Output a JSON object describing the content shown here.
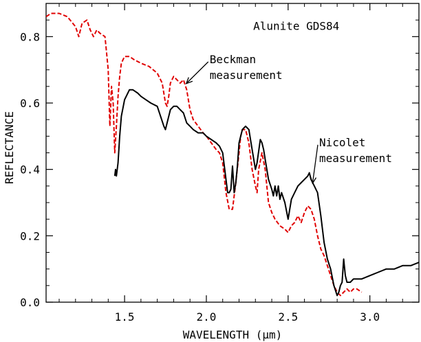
{
  "chart_data": {
    "type": "line",
    "title": "Alunite GDS84",
    "xlabel": "WAVELENGTH (µm)",
    "ylabel": "REFLECTANCE",
    "xlim": [
      1.02,
      3.3
    ],
    "ylim": [
      0.0,
      0.9
    ],
    "xticks": [
      1.5,
      2.0,
      2.5,
      3.0
    ],
    "xtick_labels": [
      "1.5",
      "2.0",
      "2.5",
      "3.0"
    ],
    "yticks": [
      0.0,
      0.2,
      0.4,
      0.6,
      0.8
    ],
    "ytick_labels": [
      "0.0",
      "0.2",
      "0.4",
      "0.6",
      "0.8"
    ],
    "grid": false,
    "legend": "none",
    "series": [
      {
        "name": "Beckman measurement",
        "color": "#e00000",
        "dash": "dashed",
        "x": [
          1.02,
          1.05,
          1.1,
          1.15,
          1.2,
          1.22,
          1.24,
          1.27,
          1.29,
          1.31,
          1.33,
          1.35,
          1.38,
          1.39,
          1.4,
          1.41,
          1.42,
          1.43,
          1.44,
          1.45,
          1.46,
          1.47,
          1.48,
          1.5,
          1.53,
          1.56,
          1.6,
          1.65,
          1.7,
          1.73,
          1.75,
          1.76,
          1.77,
          1.78,
          1.8,
          1.82,
          1.84,
          1.86,
          1.88,
          1.9,
          1.92,
          1.95,
          1.98,
          2.0,
          2.03,
          2.06,
          2.08,
          2.1,
          2.12,
          2.14,
          2.16,
          2.17,
          2.18,
          2.2,
          2.21,
          2.22,
          2.24,
          2.26,
          2.28,
          2.3,
          2.31,
          2.32,
          2.34,
          2.36,
          2.38,
          2.4,
          2.42,
          2.45,
          2.48,
          2.5,
          2.52,
          2.54,
          2.56,
          2.58,
          2.6,
          2.62,
          2.64,
          2.66,
          2.68,
          2.7,
          2.72,
          2.74,
          2.76,
          2.78,
          2.8,
          2.82,
          2.84,
          2.86,
          2.88,
          2.9,
          2.92,
          2.95
        ],
        "y": [
          0.86,
          0.87,
          0.87,
          0.86,
          0.83,
          0.8,
          0.84,
          0.85,
          0.82,
          0.8,
          0.82,
          0.81,
          0.8,
          0.75,
          0.7,
          0.53,
          0.65,
          0.6,
          0.45,
          0.53,
          0.62,
          0.68,
          0.72,
          0.74,
          0.74,
          0.73,
          0.72,
          0.71,
          0.69,
          0.66,
          0.6,
          0.59,
          0.62,
          0.66,
          0.68,
          0.67,
          0.66,
          0.67,
          0.64,
          0.58,
          0.55,
          0.53,
          0.51,
          0.5,
          0.48,
          0.46,
          0.45,
          0.42,
          0.33,
          0.28,
          0.28,
          0.32,
          0.36,
          0.45,
          0.5,
          0.52,
          0.52,
          0.48,
          0.4,
          0.35,
          0.33,
          0.4,
          0.45,
          0.4,
          0.3,
          0.27,
          0.25,
          0.23,
          0.22,
          0.21,
          0.23,
          0.24,
          0.26,
          0.24,
          0.27,
          0.29,
          0.28,
          0.25,
          0.2,
          0.16,
          0.14,
          0.11,
          0.08,
          0.05,
          0.03,
          0.02,
          0.03,
          0.04,
          0.03,
          0.04,
          0.04,
          0.03
        ]
      },
      {
        "name": "Nicolet measurement",
        "color": "#000000",
        "dash": "solid",
        "x": [
          1.44,
          1.445,
          1.45,
          1.455,
          1.46,
          1.47,
          1.48,
          1.5,
          1.53,
          1.55,
          1.58,
          1.6,
          1.63,
          1.66,
          1.7,
          1.72,
          1.74,
          1.75,
          1.76,
          1.78,
          1.8,
          1.82,
          1.84,
          1.86,
          1.88,
          1.9,
          1.92,
          1.95,
          1.98,
          2.0,
          2.03,
          2.06,
          2.08,
          2.1,
          2.12,
          2.13,
          2.14,
          2.15,
          2.16,
          2.17,
          2.18,
          2.19,
          2.2,
          2.22,
          2.24,
          2.26,
          2.28,
          2.3,
          2.31,
          2.33,
          2.34,
          2.35,
          2.36,
          2.38,
          2.4,
          2.41,
          2.42,
          2.43,
          2.44,
          2.45,
          2.46,
          2.48,
          2.5,
          2.52,
          2.54,
          2.56,
          2.58,
          2.6,
          2.62,
          2.63,
          2.64,
          2.66,
          2.68,
          2.7,
          2.72,
          2.74,
          2.76,
          2.78,
          2.8,
          2.81,
          2.82,
          2.83,
          2.84,
          2.85,
          2.86,
          2.88,
          2.9,
          2.95,
          3.0,
          3.05,
          3.1,
          3.15,
          3.2,
          3.25,
          3.3
        ],
        "y": [
          0.38,
          0.4,
          0.38,
          0.4,
          0.42,
          0.5,
          0.56,
          0.61,
          0.64,
          0.64,
          0.63,
          0.62,
          0.61,
          0.6,
          0.59,
          0.56,
          0.53,
          0.52,
          0.54,
          0.58,
          0.59,
          0.59,
          0.58,
          0.57,
          0.54,
          0.53,
          0.52,
          0.51,
          0.51,
          0.5,
          0.49,
          0.48,
          0.47,
          0.45,
          0.37,
          0.33,
          0.33,
          0.34,
          0.41,
          0.33,
          0.36,
          0.41,
          0.48,
          0.52,
          0.53,
          0.52,
          0.46,
          0.4,
          0.42,
          0.49,
          0.48,
          0.46,
          0.43,
          0.37,
          0.34,
          0.32,
          0.35,
          0.32,
          0.35,
          0.31,
          0.33,
          0.3,
          0.25,
          0.31,
          0.33,
          0.35,
          0.36,
          0.37,
          0.38,
          0.39,
          0.37,
          0.35,
          0.33,
          0.26,
          0.18,
          0.13,
          0.1,
          0.05,
          0.02,
          0.03,
          0.05,
          0.06,
          0.13,
          0.08,
          0.06,
          0.06,
          0.07,
          0.07,
          0.08,
          0.09,
          0.1,
          0.1,
          0.11,
          0.11,
          0.12
        ]
      }
    ],
    "annotations": [
      {
        "id": "title",
        "text": "Alunite GDS84",
        "x": 2.55,
        "y": 0.82
      },
      {
        "id": "beckman",
        "lines": [
          "Beckman",
          "measurement"
        ],
        "x": 2.02,
        "y": 0.72,
        "arrow_to": [
          1.88,
          0.66
        ]
      },
      {
        "id": "nicolet",
        "lines": [
          "Nicolet",
          "measurement"
        ],
        "x": 2.69,
        "y": 0.47,
        "arrow_to": [
          2.65,
          0.36
        ]
      }
    ]
  }
}
